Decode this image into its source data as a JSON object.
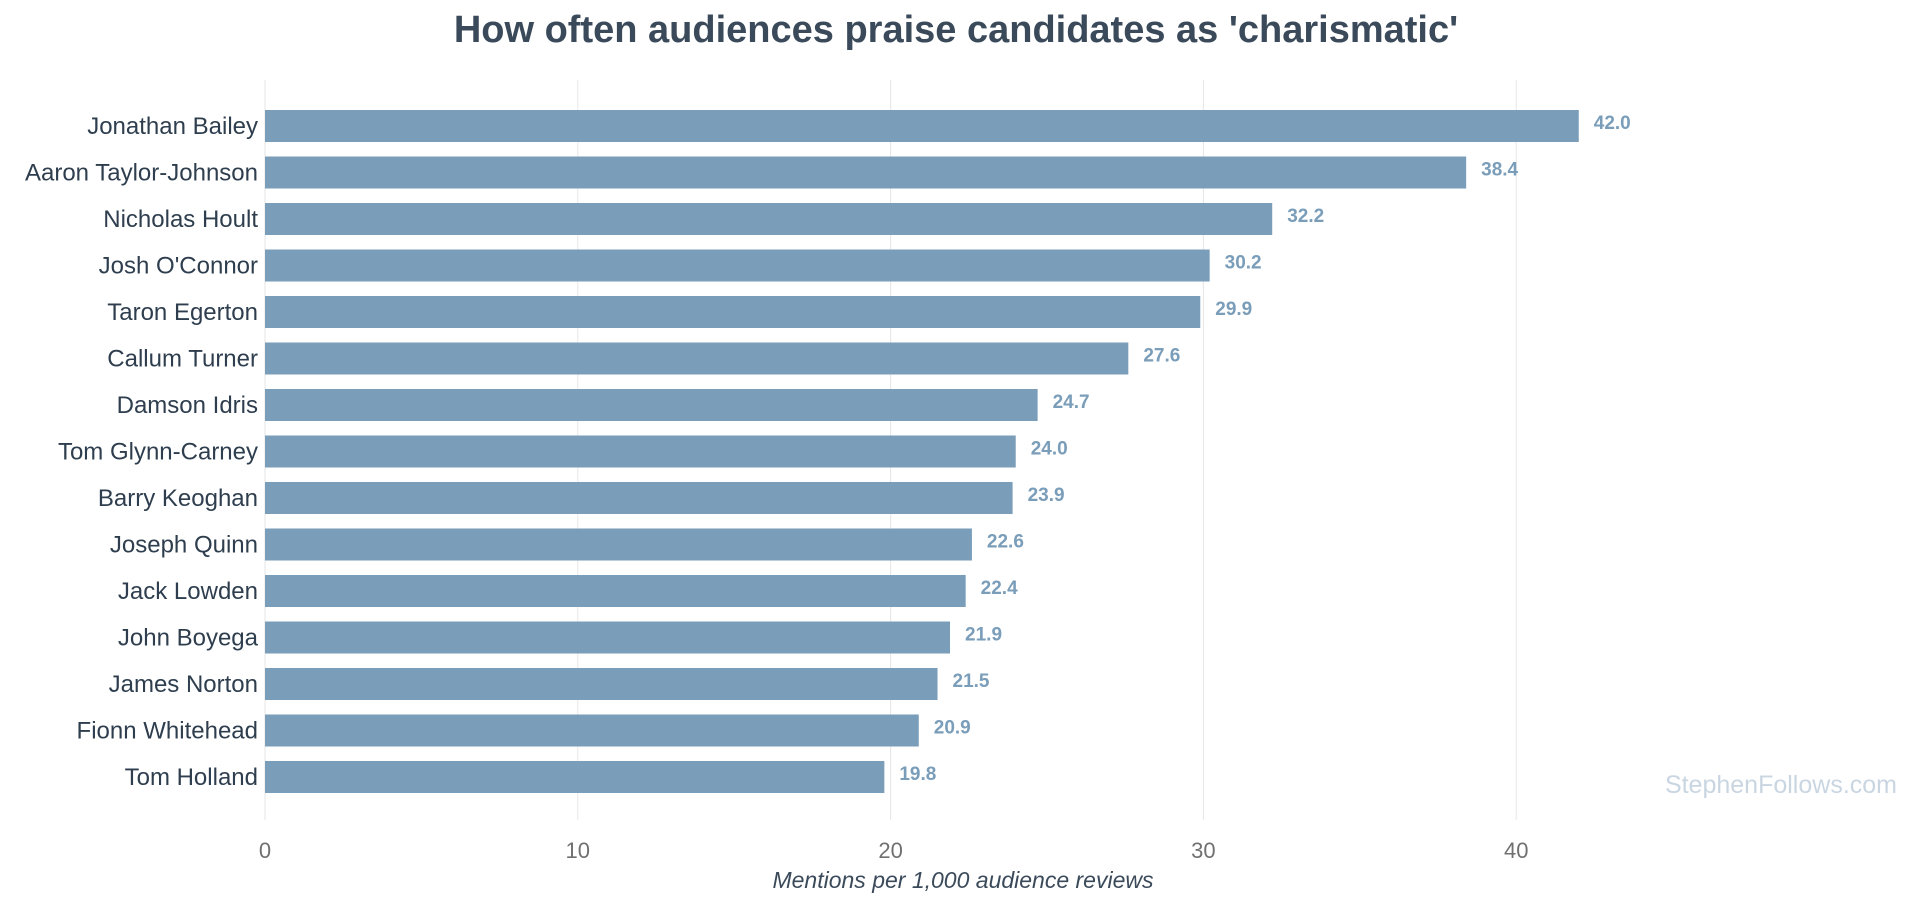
{
  "chart_data": {
    "type": "bar",
    "orientation": "horizontal",
    "title": "How often audiences praise candidates as 'charismatic'",
    "xlabel": "Mentions per 1,000 audience reviews",
    "ylabel": "",
    "xlim": [
      0,
      50
    ],
    "xticks": [
      0,
      10,
      20,
      30,
      40
    ],
    "xtick_labels": [
      "0",
      "10",
      "20",
      "30",
      "40"
    ],
    "grid": "vertical",
    "categories": [
      "Jonathan Bailey",
      "Aaron Taylor-Johnson",
      "Nicholas Hoult",
      "Josh O'Connor",
      "Taron Egerton",
      "Callum Turner",
      "Damson Idris",
      "Tom Glynn-Carney",
      "Barry Keoghan",
      "Joseph Quinn",
      "Jack Lowden",
      "John Boyega",
      "James Norton",
      "Fionn Whitehead",
      "Tom Holland"
    ],
    "values": [
      42.0,
      38.4,
      32.2,
      30.2,
      29.9,
      27.6,
      24.7,
      24.0,
      23.9,
      22.6,
      22.4,
      21.9,
      21.5,
      20.9,
      19.8
    ],
    "value_labels": [
      "42.0",
      "38.4",
      "32.2",
      "30.2",
      "29.9",
      "27.6",
      "24.7",
      "24.0",
      "23.9",
      "22.6",
      "22.4",
      "21.9",
      "21.5",
      "20.9",
      "19.8"
    ],
    "bar_color": "#7a9db9",
    "value_label_color": "#7a9db9",
    "grid_color": "#e6e6e6",
    "watermark": "StephenFollows.com",
    "watermark_color": "#c9d6e2"
  }
}
